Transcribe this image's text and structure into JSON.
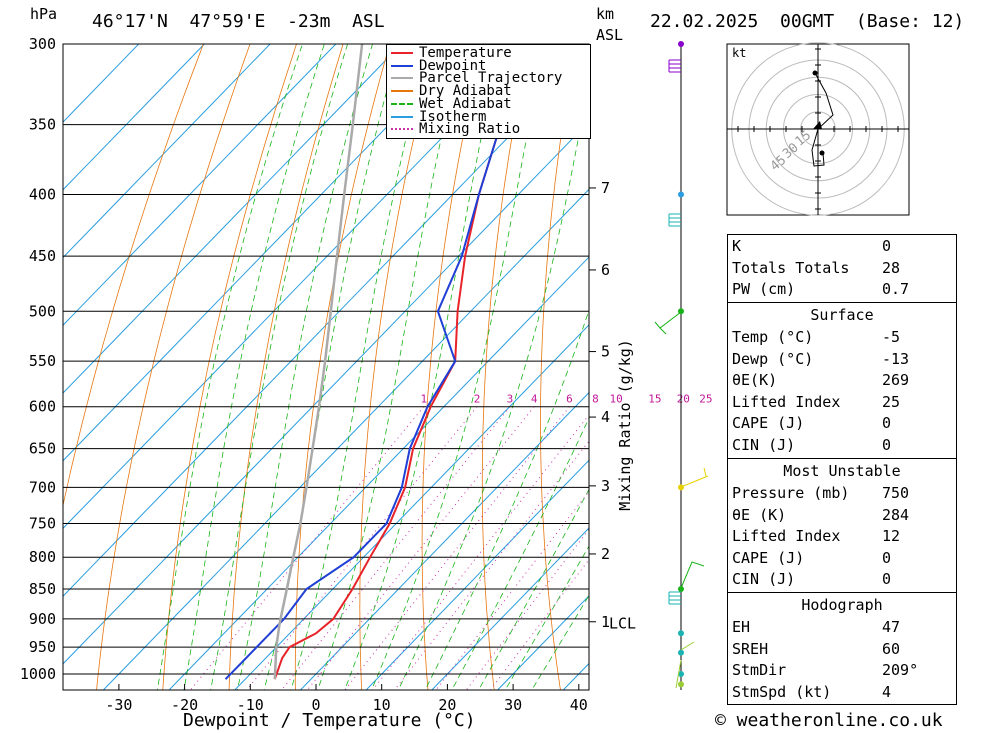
{
  "header": {
    "hpa_unit": "hPa",
    "location": "46°17'N  47°59'E  -23m  ASL",
    "km_label": "km",
    "asl_label": "ASL",
    "date": "22.02.2025  00GMT  (Base: 12)"
  },
  "footer": {
    "credit": "© weatheronline.co.uk"
  },
  "chart_data": {
    "type": "skew-t",
    "xlabel": "Dewpoint / Temperature (°C)",
    "ylabel_right": "Mixing Ratio (g/kg)",
    "y_unit": "hPa",
    "pressure_ticks": [
      300,
      350,
      400,
      450,
      500,
      550,
      600,
      650,
      700,
      750,
      800,
      850,
      900,
      950,
      1000
    ],
    "temp_ticks": [
      -30,
      -20,
      -10,
      0,
      10,
      20,
      30,
      40
    ],
    "km_ticks": [
      {
        "label": "7",
        "p": 395
      },
      {
        "label": "6",
        "p": 462
      },
      {
        "label": "5",
        "p": 540
      },
      {
        "label": "4",
        "p": 612
      },
      {
        "label": "3",
        "p": 698
      },
      {
        "label": "2",
        "p": 795
      },
      {
        "label": "1",
        "p": 905
      }
    ],
    "lcl": {
      "label": "LCL",
      "p": 908
    },
    "mixing_ratio_labels": [
      "1",
      "2",
      "3",
      "4",
      "6",
      "8",
      "10",
      "15",
      "20",
      "25"
    ],
    "mixing_ratio_values": [
      1,
      2,
      3,
      4,
      6,
      8,
      10,
      15,
      20,
      25
    ],
    "legend": [
      {
        "name": "Temperature",
        "color": "#e8242a"
      },
      {
        "name": "Dewpoint",
        "color": "#1f3fd6"
      },
      {
        "name": "Parcel Trajectory",
        "color": "#aaaaaa"
      },
      {
        "name": "Dry Adiabat",
        "color": "#e8760f"
      },
      {
        "name": "Wet Adiabat",
        "color": "#19b319"
      },
      {
        "name": "Isotherm",
        "color": "#2a9ee0"
      },
      {
        "name": "Mixing Ratio",
        "color": "#cc33aa"
      }
    ],
    "series": [
      {
        "name": "Temperature",
        "points": [
          [
            1010,
            -5.5
          ],
          [
            970,
            -7.5
          ],
          [
            950,
            -8
          ],
          [
            925,
            -6
          ],
          [
            900,
            -5.5
          ],
          [
            850,
            -7
          ],
          [
            800,
            -9
          ],
          [
            750,
            -11
          ],
          [
            700,
            -14
          ],
          [
            650,
            -18.5
          ],
          [
            600,
            -22
          ],
          [
            550,
            -25
          ],
          [
            500,
            -32
          ],
          [
            450,
            -39
          ],
          [
            400,
            -46
          ],
          [
            350,
            -53
          ],
          [
            300,
            -60
          ]
        ]
      },
      {
        "name": "Dewpoint",
        "points": [
          [
            1010,
            -13
          ],
          [
            970,
            -13
          ],
          [
            950,
            -13
          ],
          [
            925,
            -13
          ],
          [
            900,
            -13
          ],
          [
            850,
            -14
          ],
          [
            800,
            -11.5
          ],
          [
            750,
            -11.5
          ],
          [
            700,
            -14.5
          ],
          [
            650,
            -19
          ],
          [
            600,
            -22.5
          ],
          [
            550,
            -25
          ],
          [
            500,
            -35
          ],
          [
            450,
            -39.5
          ],
          [
            400,
            -46
          ],
          [
            350,
            -53
          ],
          [
            300,
            -60
          ]
        ]
      },
      {
        "name": "Parcel Trajectory",
        "points": [
          [
            1010,
            -5.5
          ],
          [
            950,
            -10
          ],
          [
            908,
            -13
          ],
          [
            850,
            -17
          ],
          [
            800,
            -20.7
          ],
          [
            750,
            -24.6
          ],
          [
            700,
            -29
          ],
          [
            650,
            -33.8
          ],
          [
            600,
            -39
          ],
          [
            550,
            -44.8
          ],
          [
            500,
            -51.3
          ],
          [
            450,
            -58.5
          ],
          [
            400,
            -66.5
          ],
          [
            350,
            -75.5
          ],
          [
            300,
            -86
          ]
        ]
      }
    ],
    "indices": {
      "general": [
        {
          "label": "K",
          "value": "0"
        },
        {
          "label": "Totals Totals",
          "value": "28"
        },
        {
          "label": "PW (cm)",
          "value": "0.7"
        }
      ],
      "surface_title": "Surface",
      "surface": [
        {
          "label": "Temp (°C)",
          "value": "-5"
        },
        {
          "label": "Dewp (°C)",
          "value": "-13"
        },
        {
          "label": "θE(K)",
          "value": "269"
        },
        {
          "label": "Lifted Index",
          "value": "25"
        },
        {
          "label": "CAPE (J)",
          "value": "0"
        },
        {
          "label": "CIN (J)",
          "value": "0"
        }
      ],
      "unstable_title": "Most Unstable",
      "unstable": [
        {
          "label": "Pressure (mb)",
          "value": "750"
        },
        {
          "label": "θE (K)",
          "value": "284"
        },
        {
          "label": "Lifted Index",
          "value": "12"
        },
        {
          "label": "CAPE (J)",
          "value": "0"
        },
        {
          "label": "CIN (J)",
          "value": "0"
        }
      ],
      "hodo_title": "Hodograph",
      "hodo": [
        {
          "label": "EH",
          "value": "47"
        },
        {
          "label": "SREH",
          "value": "60"
        },
        {
          "label": "StmDir",
          "value": "209°"
        },
        {
          "label": "StmSpd (kt)",
          "value": "4"
        }
      ]
    },
    "hodograph": {
      "unit": "kt",
      "ring_labels": [
        "15",
        "30",
        "45"
      ]
    }
  }
}
